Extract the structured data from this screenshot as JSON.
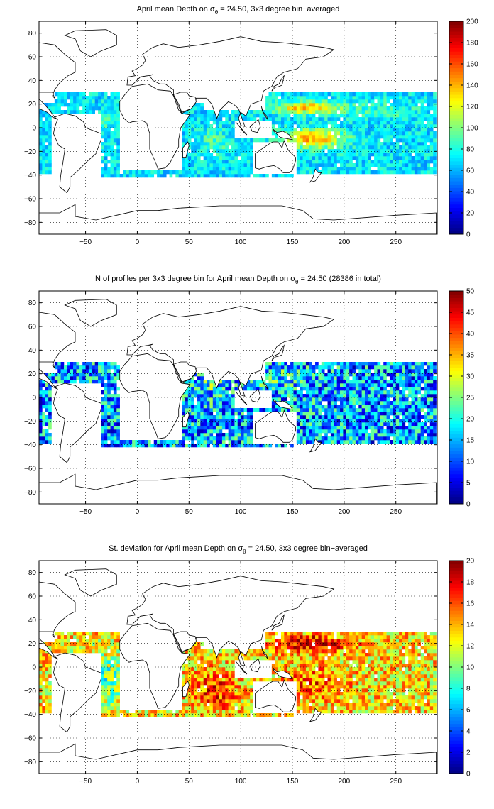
{
  "chart_data": [
    {
      "type": "heatmap",
      "title": "April mean Depth on σθ = 24.50, 3x3 degree bin−averaged",
      "title_parts": {
        "prefix": "April mean Depth on σ",
        "subscript": "θ",
        "suffix": " = 24.50, 3x3 degree bin−averaged"
      },
      "xlabel": "",
      "ylabel": "",
      "xlim": [
        -95,
        290
      ],
      "ylim": [
        -90,
        90
      ],
      "xticks": [
        -50,
        0,
        50,
        100,
        150,
        200,
        250
      ],
      "yticks": [
        -80,
        -60,
        -40,
        -20,
        0,
        20,
        40,
        60,
        80
      ],
      "grid": true,
      "colorbar": {
        "min": 0,
        "max": 200,
        "ticks": [
          0,
          20,
          40,
          60,
          80,
          100,
          120,
          140,
          160,
          180,
          200
        ]
      },
      "field": "depth",
      "bin_size_deg": 3,
      "blobs": [
        {
          "lon": 165,
          "lat": 17,
          "rlon": 30,
          "rlat": 5,
          "v": 70
        },
        {
          "lon": 170,
          "lat": -9,
          "rlon": 30,
          "rlat": 8,
          "v": 70
        },
        {
          "lon": 75,
          "lat": -12,
          "rlon": 15,
          "rlat": 12,
          "v": 20
        },
        {
          "lon": -30,
          "lat": 5,
          "rlon": 20,
          "rlat": 6,
          "v": 15
        },
        {
          "lon": 240,
          "lat": 15,
          "rlon": 40,
          "rlat": 8,
          "v": 15
        }
      ],
      "base_value": 70,
      "value_range": [
        0,
        200
      ],
      "noise": 18
    },
    {
      "type": "heatmap",
      "title": "N of profiles per 3x3 degree bin for April mean Depth on σθ = 24.50 (28386 in total)",
      "title_parts": {
        "prefix": "N of profiles per 3x3 degree bin for April mean Depth on σ",
        "subscript": "θ",
        "suffix": " = 24.50 (28386 in total)"
      },
      "total_profiles": 28386,
      "xlabel": "",
      "ylabel": "",
      "xlim": [
        -95,
        290
      ],
      "ylim": [
        -90,
        90
      ],
      "xticks": [
        -50,
        0,
        50,
        100,
        150,
        200,
        250
      ],
      "yticks": [
        -80,
        -60,
        -40,
        -20,
        0,
        20,
        40,
        60,
        80
      ],
      "grid": true,
      "colorbar": {
        "min": 0,
        "max": 50,
        "ticks": [
          0,
          5,
          10,
          15,
          20,
          25,
          30,
          35,
          40,
          45,
          50
        ]
      },
      "field": "count",
      "bin_size_deg": 3,
      "blobs": [
        {
          "lon": 140,
          "lat": 15,
          "rlon": 25,
          "rlat": 10,
          "v": 6
        },
        {
          "lon": 70,
          "lat": 10,
          "rlon": 20,
          "rlat": 15,
          "v": 5
        }
      ],
      "base_value": 14,
      "value_range": [
        0,
        50
      ],
      "noise": 12
    },
    {
      "type": "heatmap",
      "title": "St. deviation for April mean Depth on σθ = 24.50, 3x3 degree bin−averaged",
      "title_parts": {
        "prefix": "St. deviation for April mean Depth on σ",
        "subscript": "θ",
        "suffix": " = 24.50, 3x3 degree bin−averaged"
      },
      "xlabel": "",
      "ylabel": "",
      "xlim": [
        -95,
        290
      ],
      "ylim": [
        -90,
        90
      ],
      "xticks": [
        -50,
        0,
        50,
        100,
        150,
        200,
        250
      ],
      "yticks": [
        -80,
        -60,
        -40,
        -20,
        0,
        20,
        40,
        60,
        80
      ],
      "grid": true,
      "colorbar": {
        "min": 0,
        "max": 20,
        "ticks": [
          0,
          2,
          4,
          6,
          8,
          10,
          12,
          14,
          16,
          18,
          20
        ]
      },
      "field": "std",
      "bin_size_deg": 3,
      "blobs": [
        {
          "lon": 170,
          "lat": 20,
          "rlon": 35,
          "rlat": 7,
          "v": 6
        },
        {
          "lon": 75,
          "lat": -20,
          "rlon": 20,
          "rlat": 15,
          "v": 4
        },
        {
          "lon": 170,
          "lat": -15,
          "rlon": 30,
          "rlat": 15,
          "v": 3
        },
        {
          "lon": -30,
          "lat": -10,
          "rlon": 30,
          "rlat": 20,
          "v": -4
        }
      ],
      "base_value": 13,
      "value_range": [
        0,
        20
      ],
      "noise": 3.5
    }
  ],
  "ocean_mask": {
    "lon_range": [
      -95,
      289
    ],
    "lat_range": [
      -42,
      30
    ],
    "excluded_regions": [
      {
        "name": "South America",
        "lon": [
          -82,
          -35
        ],
        "lat": [
          -42,
          12
        ]
      },
      {
        "name": "Africa",
        "lon": [
          -18,
          42
        ],
        "lat": [
          -35,
          30
        ]
      },
      {
        "name": "Asia South",
        "lon": [
          65,
          125
        ],
        "lat": [
          15,
          30
        ]
      },
      {
        "name": "Australia",
        "lon": [
          113,
          154
        ],
        "lat": [
          -39,
          -11
        ]
      },
      {
        "name": "Indonesia",
        "lon": [
          95,
          130
        ],
        "lat": [
          -8,
          5
        ]
      }
    ]
  },
  "land_outlines": [
    {
      "name": "North America",
      "points": [
        [
          -95,
          30
        ],
        [
          -97,
          26
        ],
        [
          -90,
          20
        ],
        [
          -85,
          15
        ],
        [
          -80,
          9
        ],
        [
          -77,
          7
        ],
        [
          -82,
          9
        ],
        [
          -87,
          13
        ],
        [
          -97,
          17
        ],
        [
          -105,
          21
        ],
        [
          -110,
          23
        ],
        [
          -115,
          30
        ],
        [
          -120,
          34
        ],
        [
          -124,
          40
        ],
        [
          -124,
          48
        ],
        [
          -130,
          55
        ],
        [
          -140,
          60
        ],
        [
          -150,
          60
        ],
        [
          -165,
          60
        ],
        [
          -160,
          70
        ],
        [
          -140,
          70
        ],
        [
          -120,
          70
        ],
        [
          -95,
          72
        ],
        [
          -80,
          70
        ],
        [
          -70,
          62
        ],
        [
          -60,
          55
        ],
        [
          -60,
          47
        ],
        [
          -67,
          44
        ],
        [
          -75,
          38
        ],
        [
          -80,
          32
        ],
        [
          -82,
          27
        ],
        [
          -80,
          25
        ],
        [
          -82,
          30
        ],
        [
          -88,
          30
        ],
        [
          -95,
          30
        ]
      ]
    },
    {
      "name": "Greenland",
      "points": [
        [
          -45,
          60
        ],
        [
          -55,
          65
        ],
        [
          -60,
          75
        ],
        [
          -70,
          78
        ],
        [
          -60,
          82
        ],
        [
          -30,
          83
        ],
        [
          -20,
          78
        ],
        [
          -20,
          70
        ],
        [
          -35,
          65
        ],
        [
          -45,
          60
        ]
      ]
    },
    {
      "name": "South America",
      "points": [
        [
          -80,
          9
        ],
        [
          -77,
          7
        ],
        [
          -80,
          0
        ],
        [
          -81,
          -5
        ],
        [
          -76,
          -15
        ],
        [
          -70,
          -18
        ],
        [
          -72,
          -30
        ],
        [
          -74,
          -40
        ],
        [
          -75,
          -50
        ],
        [
          -68,
          -55
        ],
        [
          -65,
          -50
        ],
        [
          -65,
          -42
        ],
        [
          -57,
          -36
        ],
        [
          -48,
          -28
        ],
        [
          -40,
          -22
        ],
        [
          -35,
          -10
        ],
        [
          -35,
          -5
        ],
        [
          -50,
          0
        ],
        [
          -52,
          5
        ],
        [
          -60,
          10
        ],
        [
          -70,
          12
        ],
        [
          -80,
          9
        ]
      ]
    },
    {
      "name": "Africa",
      "points": [
        [
          -17,
          15
        ],
        [
          -17,
          22
        ],
        [
          -12,
          28
        ],
        [
          -5,
          35
        ],
        [
          10,
          37
        ],
        [
          20,
          32
        ],
        [
          32,
          31
        ],
        [
          35,
          27
        ],
        [
          40,
          15
        ],
        [
          43,
          12
        ],
        [
          51,
          11
        ],
        [
          42,
          0
        ],
        [
          40,
          -10
        ],
        [
          40,
          -16
        ],
        [
          35,
          -24
        ],
        [
          32,
          -29
        ],
        [
          27,
          -34
        ],
        [
          20,
          -35
        ],
        [
          18,
          -30
        ],
        [
          12,
          -18
        ],
        [
          12,
          -5
        ],
        [
          9,
          4
        ],
        [
          5,
          6
        ],
        [
          -5,
          5
        ],
        [
          -8,
          4
        ],
        [
          -13,
          8
        ],
        [
          -17,
          15
        ]
      ]
    },
    {
      "name": "Europe Asia",
      "points": [
        [
          -10,
          36
        ],
        [
          -9,
          43
        ],
        [
          -2,
          44
        ],
        [
          -5,
          48
        ],
        [
          0,
          50
        ],
        [
          5,
          53
        ],
        [
          8,
          57
        ],
        [
          5,
          62
        ],
        [
          15,
          68
        ],
        [
          25,
          71
        ],
        [
          40,
          68
        ],
        [
          60,
          70
        ],
        [
          80,
          73
        ],
        [
          100,
          77
        ],
        [
          120,
          73
        ],
        [
          140,
          72
        ],
        [
          160,
          70
        ],
        [
          180,
          68
        ],
        [
          190,
          66
        ],
        [
          180,
          60
        ],
        [
          163,
          58
        ],
        [
          155,
          50
        ],
        [
          142,
          47
        ],
        [
          135,
          43
        ],
        [
          130,
          35
        ],
        [
          122,
          31
        ],
        [
          120,
          23
        ],
        [
          110,
          20
        ],
        [
          108,
          16
        ],
        [
          105,
          10
        ],
        [
          100,
          13
        ],
        [
          98,
          8
        ],
        [
          100,
          2
        ],
        [
          104,
          1
        ],
        [
          98,
          16
        ],
        [
          93,
          20
        ],
        [
          88,
          22
        ],
        [
          80,
          15
        ],
        [
          77,
          8
        ],
        [
          72,
          20
        ],
        [
          67,
          25
        ],
        [
          57,
          25
        ],
        [
          56,
          20
        ],
        [
          52,
          16
        ],
        [
          45,
          13
        ],
        [
          43,
          12
        ],
        [
          40,
          18
        ],
        [
          35,
          28
        ],
        [
          35,
          32
        ],
        [
          27,
          37
        ],
        [
          22,
          37
        ],
        [
          15,
          40
        ],
        [
          12,
          44
        ],
        [
          15,
          45
        ],
        [
          10,
          44
        ],
        [
          3,
          43
        ],
        [
          -5,
          36
        ],
        [
          -10,
          36
        ]
      ]
    },
    {
      "name": "Arabia",
      "points": [
        [
          35,
          28
        ],
        [
          40,
          20
        ],
        [
          43,
          13
        ],
        [
          52,
          16
        ],
        [
          57,
          22
        ],
        [
          56,
          26
        ],
        [
          50,
          27
        ],
        [
          48,
          30
        ],
        [
          42,
          30
        ],
        [
          35,
          28
        ]
      ]
    },
    {
      "name": "Madagascar",
      "points": [
        [
          44,
          -25
        ],
        [
          47,
          -25
        ],
        [
          50,
          -15
        ],
        [
          49,
          -12
        ],
        [
          44,
          -17
        ],
        [
          44,
          -25
        ]
      ]
    },
    {
      "name": "Australia",
      "points": [
        [
          114,
          -22
        ],
        [
          114,
          -34
        ],
        [
          118,
          -35
        ],
        [
          125,
          -33
        ],
        [
          132,
          -32
        ],
        [
          138,
          -35
        ],
        [
          141,
          -38
        ],
        [
          147,
          -38
        ],
        [
          150,
          -36
        ],
        [
          153,
          -28
        ],
        [
          153,
          -25
        ],
        [
          146,
          -19
        ],
        [
          142,
          -11
        ],
        [
          140,
          -17
        ],
        [
          136,
          -12
        ],
        [
          131,
          -12
        ],
        [
          127,
          -14
        ],
        [
          122,
          -17
        ],
        [
          114,
          -22
        ]
      ]
    },
    {
      "name": "Borneo Sumatra",
      "points": [
        [
          95,
          5
        ],
        [
          100,
          0
        ],
        [
          106,
          -6
        ],
        [
          103,
          -4
        ],
        [
          98,
          2
        ],
        [
          95,
          5
        ]
      ]
    },
    {
      "name": "Borneo",
      "points": [
        [
          109,
          1
        ],
        [
          111,
          -3
        ],
        [
          116,
          -4
        ],
        [
          119,
          1
        ],
        [
          117,
          7
        ],
        [
          113,
          4
        ],
        [
          109,
          1
        ]
      ]
    },
    {
      "name": "New Guinea",
      "points": [
        [
          131,
          -1
        ],
        [
          135,
          -4
        ],
        [
          141,
          -3
        ],
        [
          147,
          -6
        ],
        [
          150,
          -10
        ],
        [
          143,
          -9
        ],
        [
          138,
          -8
        ],
        [
          132,
          -3
        ],
        [
          131,
          -1
        ]
      ]
    },
    {
      "name": "Japan",
      "points": [
        [
          130,
          31
        ],
        [
          133,
          34
        ],
        [
          137,
          35
        ],
        [
          140,
          36
        ],
        [
          141,
          40
        ],
        [
          142,
          44
        ],
        [
          140,
          42
        ],
        [
          137,
          37
        ],
        [
          132,
          35
        ],
        [
          130,
          31
        ]
      ]
    },
    {
      "name": "Philippines",
      "points": [
        [
          120,
          18
        ],
        [
          122,
          12
        ],
        [
          126,
          7
        ],
        [
          125,
          10
        ],
        [
          121,
          14
        ],
        [
          120,
          18
        ]
      ]
    },
    {
      "name": "New Zealand",
      "points": [
        [
          172,
          -35
        ],
        [
          175,
          -38
        ],
        [
          178,
          -38
        ],
        [
          172,
          -45
        ],
        [
          167,
          -46
        ],
        [
          170,
          -42
        ],
        [
          172,
          -35
        ]
      ]
    },
    {
      "name": "Antarctica",
      "points": [
        [
          -95,
          -72
        ],
        [
          -75,
          -72
        ],
        [
          -60,
          -65
        ],
        [
          -60,
          -75
        ],
        [
          -40,
          -78
        ],
        [
          -20,
          -74
        ],
        [
          0,
          -70
        ],
        [
          20,
          -70
        ],
        [
          40,
          -68
        ],
        [
          60,
          -67
        ],
        [
          80,
          -66
        ],
        [
          100,
          -66
        ],
        [
          120,
          -66
        ],
        [
          140,
          -66
        ],
        [
          160,
          -70
        ],
        [
          170,
          -77
        ],
        [
          190,
          -78
        ],
        [
          220,
          -76
        ],
        [
          250,
          -74
        ],
        [
          270,
          -73
        ],
        [
          289,
          -72
        ],
        [
          289,
          -90
        ],
        [
          -95,
          -90
        ],
        [
          -95,
          -72
        ]
      ]
    }
  ]
}
